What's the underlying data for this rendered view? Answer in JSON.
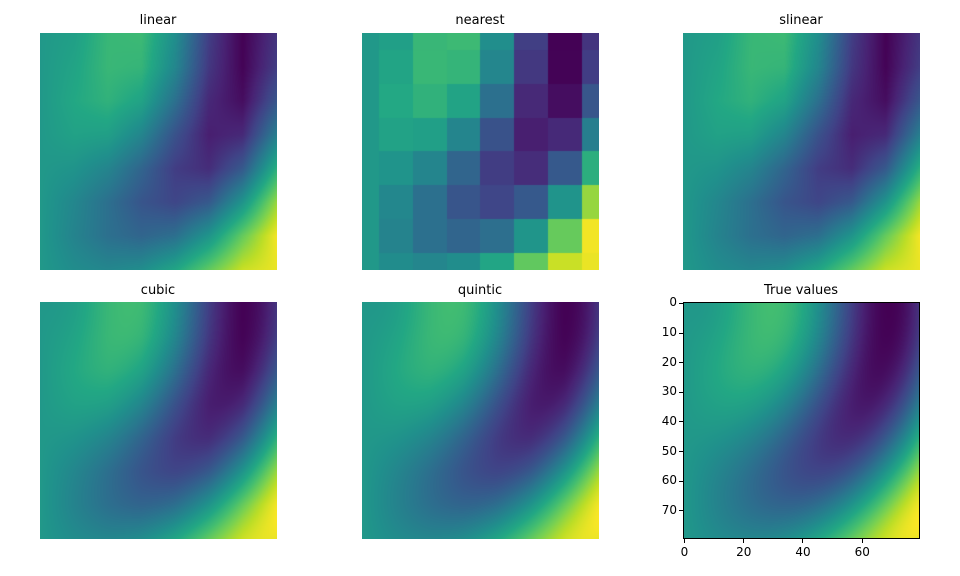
{
  "chart_data": [
    {
      "type": "heatmap",
      "title": "linear",
      "method": "linear",
      "colormap": "viridis",
      "axes_visible": false
    },
    {
      "type": "heatmap",
      "title": "nearest",
      "method": "nearest",
      "colormap": "viridis",
      "axes_visible": false
    },
    {
      "type": "heatmap",
      "title": "slinear",
      "method": "slinear",
      "colormap": "viridis",
      "axes_visible": false
    },
    {
      "type": "heatmap",
      "title": "cubic",
      "method": "cubic",
      "colormap": "viridis",
      "axes_visible": false
    },
    {
      "type": "heatmap",
      "title": "quintic",
      "method": "quintic",
      "colormap": "viridis",
      "axes_visible": false
    },
    {
      "type": "heatmap",
      "title": "True values",
      "method": "true",
      "colormap": "viridis",
      "axes_visible": true,
      "xticks": [
        0,
        20,
        40,
        60
      ],
      "xtick_labels": [
        "0",
        "20",
        "40",
        "60"
      ],
      "yticks": [
        0,
        10,
        20,
        30,
        40,
        50,
        60,
        70
      ],
      "ytick_labels": [
        "0",
        "10",
        "20",
        "30",
        "40",
        "50",
        "60",
        "70"
      ],
      "xlim": [
        -0.5,
        79.5
      ],
      "ylim": [
        79.5,
        -0.5
      ]
    }
  ]
}
